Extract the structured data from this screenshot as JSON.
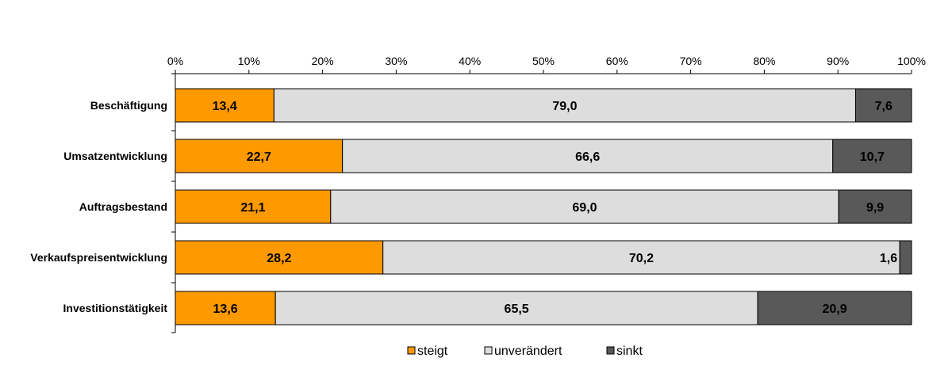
{
  "chart_data": {
    "type": "bar",
    "orientation": "horizontal",
    "stacked": true,
    "percent_axis": true,
    "xlim": [
      0,
      100
    ],
    "x_ticks": [
      "0%",
      "10%",
      "20%",
      "30%",
      "40%",
      "50%",
      "60%",
      "70%",
      "80%",
      "90%",
      "100%"
    ],
    "categories": [
      "Beschäftigung",
      "Umsatzentwicklung",
      "Auftragsbestand",
      "Verkaufspreisentwicklung",
      "Investitionstätigkeit"
    ],
    "series": [
      {
        "name": "steigt",
        "color": "#FF9900",
        "values": [
          13.4,
          22.7,
          21.1,
          28.2,
          13.6
        ],
        "labels": [
          "13,4",
          "22,7",
          "21,1",
          "28,2",
          "13,6"
        ]
      },
      {
        "name": "unverändert",
        "color": "#DDDDDD",
        "values": [
          79.0,
          66.6,
          69.0,
          70.2,
          65.5
        ],
        "labels": [
          "79,0",
          "66,6",
          "69,0",
          "70,2",
          "65,5"
        ]
      },
      {
        "name": "sinkt",
        "color": "#595959",
        "values": [
          7.6,
          10.7,
          9.9,
          1.6,
          20.9
        ],
        "labels": [
          "7,6",
          "10,7",
          "9,9",
          "1,6",
          "20,9"
        ]
      }
    ],
    "grid": false,
    "legend": "bottom"
  }
}
